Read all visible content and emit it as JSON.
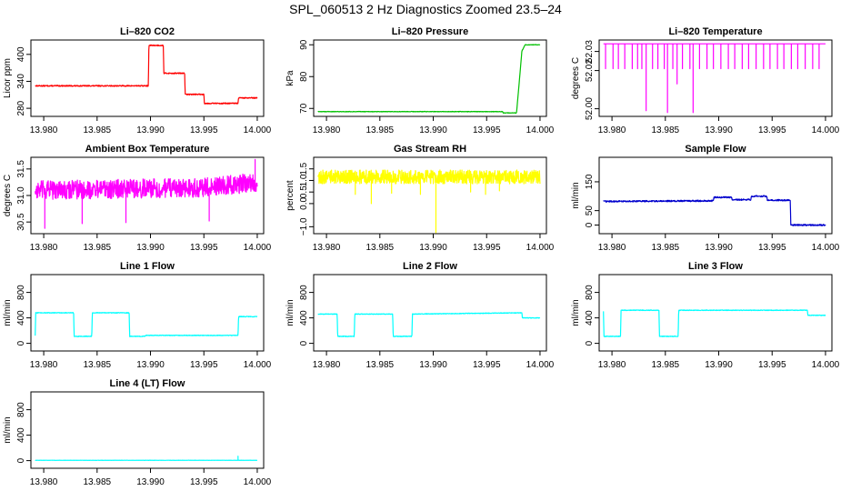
{
  "figure": {
    "title": "SPL_060513  2 Hz Diagnostics Zoomed 23.5–24"
  },
  "chart_data": [
    {
      "type": "line",
      "title": "Li–820 CO2",
      "xlabel": "",
      "ylabel": "Licor ppm",
      "color": "#ff0000",
      "xlim": [
        13.9788,
        14.0006
      ],
      "ylim": [
        262,
        432
      ],
      "xticks": [
        "13.980",
        "13.985",
        "13.990",
        "13.995",
        "14.000"
      ],
      "yticks": [
        {
          "v": 280,
          "label": "280"
        },
        {
          "v": 340,
          "label": "340"
        },
        {
          "v": 400,
          "label": "400"
        }
      ],
      "x": [
        13.9792,
        13.9898,
        13.98985,
        13.9912,
        13.99125,
        13.9932,
        13.99325,
        13.995,
        13.99505,
        13.9982,
        13.99825,
        14.0
      ],
      "values": [
        330,
        330,
        420,
        420,
        358,
        358,
        311,
        311,
        291,
        291,
        303,
        303
      ],
      "noise": 1.2,
      "spikes": []
    },
    {
      "type": "line",
      "title": "Li–820 Pressure",
      "xlabel": "",
      "ylabel": "kPa",
      "color": "#00c000",
      "xlim": [
        13.9788,
        14.0006
      ],
      "ylim": [
        67.5,
        91.5
      ],
      "xticks": [
        "13.980",
        "13.985",
        "13.990",
        "13.995",
        "14.000"
      ],
      "yticks": [
        {
          "v": 70,
          "label": "70"
        },
        {
          "v": 80,
          "label": "80"
        },
        {
          "v": 90,
          "label": "90"
        }
      ],
      "x": [
        13.9792,
        13.9965,
        13.99655,
        13.9978,
        13.9981,
        13.9983,
        13.9986,
        14.0
      ],
      "values": [
        69.0,
        69.0,
        68.6,
        68.6,
        80,
        88,
        90,
        90
      ],
      "noise": 0.08,
      "spikes": []
    },
    {
      "type": "line",
      "title": "Li–820 Temperature",
      "xlabel": "",
      "ylabel": "degrees C",
      "color": "#ff00ff",
      "xlim": [
        13.9788,
        14.0006
      ],
      "ylim": [
        51.996,
        52.036
      ],
      "xticks": [
        "13.980",
        "13.985",
        "13.990",
        "13.995",
        "14.000"
      ],
      "yticks": [
        {
          "v": 52.0,
          "label": "52.00"
        },
        {
          "v": 52.02,
          "label": "52.02"
        },
        {
          "v": 52.03,
          "label": "52.03"
        }
      ],
      "x": [
        13.9792,
        14.0
      ],
      "values": [
        52.034,
        52.034
      ],
      "noise": 0,
      "spikes": [
        {
          "x": 13.9794,
          "v": 52.021
        },
        {
          "x": 13.9801,
          "v": 52.021
        },
        {
          "x": 13.9806,
          "v": 52.021
        },
        {
          "x": 13.9812,
          "v": 52.021
        },
        {
          "x": 13.9819,
          "v": 52.021
        },
        {
          "x": 13.9824,
          "v": 52.021
        },
        {
          "x": 13.9828,
          "v": 52.021
        },
        {
          "x": 13.9832,
          "v": 51.999
        },
        {
          "x": 13.9838,
          "v": 52.021
        },
        {
          "x": 13.9843,
          "v": 52.021
        },
        {
          "x": 13.9849,
          "v": 52.021
        },
        {
          "x": 13.9852,
          "v": 51.998
        },
        {
          "x": 13.9857,
          "v": 52.021
        },
        {
          "x": 13.9861,
          "v": 52.013
        },
        {
          "x": 13.9866,
          "v": 52.021
        },
        {
          "x": 13.9873,
          "v": 52.021
        },
        {
          "x": 13.9876,
          "v": 51.998
        },
        {
          "x": 13.9882,
          "v": 52.021
        },
        {
          "x": 13.9889,
          "v": 52.021
        },
        {
          "x": 13.9895,
          "v": 52.021
        },
        {
          "x": 13.9902,
          "v": 52.021
        },
        {
          "x": 13.9909,
          "v": 52.021
        },
        {
          "x": 13.9915,
          "v": 52.021
        },
        {
          "x": 13.9922,
          "v": 52.021
        },
        {
          "x": 13.9928,
          "v": 52.021
        },
        {
          "x": 13.9935,
          "v": 52.021
        },
        {
          "x": 13.9942,
          "v": 52.021
        },
        {
          "x": 13.9948,
          "v": 52.021
        },
        {
          "x": 13.9955,
          "v": 52.021
        },
        {
          "x": 13.9961,
          "v": 52.021
        },
        {
          "x": 13.9968,
          "v": 52.021
        },
        {
          "x": 13.9974,
          "v": 52.021
        },
        {
          "x": 13.9981,
          "v": 52.021
        },
        {
          "x": 13.9988,
          "v": 52.021
        },
        {
          "x": 13.9994,
          "v": 52.021
        }
      ]
    },
    {
      "type": "line",
      "title": "Ambient Box Temperature",
      "xlabel": "",
      "ylabel": "degrees C",
      "color": "#ff00ff",
      "xlim": [
        13.9788,
        14.0006
      ],
      "ylim": [
        30.28,
        31.72
      ],
      "xticks": [
        "13.980",
        "13.985",
        "13.990",
        "13.995",
        "14.000"
      ],
      "yticks": [
        {
          "v": 30.5,
          "label": "30.5"
        },
        {
          "v": 31.0,
          "label": "31.0"
        },
        {
          "v": 31.5,
          "label": "31.5"
        }
      ],
      "x": [
        13.9792,
        13.995,
        14.0
      ],
      "values": [
        31.1,
        31.15,
        31.25
      ],
      "noise": 0.18,
      "spikes": [
        {
          "x": 13.9801,
          "v": 30.38
        },
        {
          "x": 13.9836,
          "v": 30.47
        },
        {
          "x": 13.9877,
          "v": 30.49
        },
        {
          "x": 13.9955,
          "v": 30.52
        },
        {
          "x": 13.9998,
          "v": 31.68
        }
      ]
    },
    {
      "type": "line",
      "title": "Gas Stream RH",
      "xlabel": "",
      "ylabel": "percent",
      "color": "#ffff00",
      "xlim": [
        13.9788,
        14.0006
      ],
      "ylim": [
        -1.3,
        2.0
      ],
      "xticks": [
        "13.980",
        "13.985",
        "13.990",
        "13.995",
        "14.000"
      ],
      "yticks": [
        {
          "v": -1.0,
          "label": "−1.0"
        },
        {
          "v": 0.0,
          "label": "0.0"
        },
        {
          "v": 0.5,
          "label": "0.5"
        },
        {
          "v": 1.0,
          "label": "1.0"
        },
        {
          "v": 1.5,
          "label": "1.5"
        }
      ],
      "x": [
        13.9792,
        14.0
      ],
      "values": [
        1.15,
        1.15
      ],
      "noise": 0.3,
      "spikes": [
        {
          "x": 13.9827,
          "v": 0.4
        },
        {
          "x": 13.9842,
          "v": 0.0
        },
        {
          "x": 13.9861,
          "v": 0.45
        },
        {
          "x": 13.9888,
          "v": 0.4
        },
        {
          "x": 13.99025,
          "v": -1.25
        },
        {
          "x": 13.9935,
          "v": 0.5
        },
        {
          "x": 13.9949,
          "v": 0.4
        },
        {
          "x": 13.9962,
          "v": 0.55
        }
      ]
    },
    {
      "type": "line",
      "title": "Sample Flow",
      "xlabel": "",
      "ylabel": "ml/min",
      "color": "#0000cd",
      "xlim": [
        13.9788,
        14.0006
      ],
      "ylim": [
        -30,
        235
      ],
      "xticks": [
        "13.980",
        "13.985",
        "13.990",
        "13.995",
        "14.000"
      ],
      "yticks": [
        {
          "v": 0,
          "label": "0"
        },
        {
          "v": 50,
          "label": "50"
        },
        {
          "v": 150,
          "label": "150"
        }
      ],
      "x": [
        13.9792,
        13.9895,
        13.98955,
        13.9912,
        13.99125,
        13.993,
        13.99305,
        13.9945,
        13.99455,
        13.9967,
        13.99675,
        14.0
      ],
      "values": [
        82,
        84,
        96,
        96,
        88,
        88,
        100,
        100,
        86,
        86,
        0,
        0
      ],
      "noise": 2.5,
      "spikes": []
    },
    {
      "type": "line",
      "title": "Line 1 Flow",
      "xlabel": "",
      "ylabel": "ml/min",
      "color": "#00ffff",
      "xlim": [
        13.9788,
        14.0006
      ],
      "ylim": [
        -120,
        1080
      ],
      "xticks": [
        "13.980",
        "13.985",
        "13.990",
        "13.995",
        "14.000"
      ],
      "yticks": [
        {
          "v": 0,
          "label": "0"
        },
        {
          "v": 400,
          "label": "400"
        },
        {
          "v": 800,
          "label": "800"
        }
      ],
      "x": [
        13.9792,
        13.97925,
        13.9828,
        13.98285,
        13.9845,
        13.98455,
        13.988,
        13.98805,
        13.9895,
        13.98955,
        13.9982,
        13.99825,
        14.0
      ],
      "values": [
        120,
        480,
        480,
        110,
        110,
        480,
        480,
        110,
        110,
        125,
        125,
        420,
        420
      ],
      "noise": 5,
      "spikes": []
    },
    {
      "type": "line",
      "title": "Line 2 Flow",
      "xlabel": "",
      "ylabel": "ml/min",
      "color": "#00ffff",
      "xlim": [
        13.9788,
        14.0006
      ],
      "ylim": [
        -120,
        1080
      ],
      "xticks": [
        "13.980",
        "13.985",
        "13.990",
        "13.995",
        "14.000"
      ],
      "yticks": [
        {
          "v": 0,
          "label": "0"
        },
        {
          "v": 400,
          "label": "400"
        },
        {
          "v": 800,
          "label": "800"
        }
      ],
      "x": [
        13.9792,
        13.981,
        13.98105,
        13.9826,
        13.98265,
        13.9862,
        13.98625,
        13.988,
        13.98805,
        13.9983,
        13.99835,
        14.0
      ],
      "values": [
        460,
        460,
        110,
        110,
        460,
        460,
        110,
        110,
        460,
        480,
        400,
        400
      ],
      "noise": 5,
      "spikes": []
    },
    {
      "type": "line",
      "title": "Line 3 Flow",
      "xlabel": "",
      "ylabel": "ml/min",
      "color": "#00ffff",
      "xlim": [
        13.9788,
        14.0006
      ],
      "ylim": [
        -120,
        1080
      ],
      "xticks": [
        "13.980",
        "13.985",
        "13.990",
        "13.995",
        "14.000"
      ],
      "yticks": [
        {
          "v": 0,
          "label": "0"
        },
        {
          "v": 400,
          "label": "400"
        },
        {
          "v": 800,
          "label": "800"
        }
      ],
      "x": [
        13.9792,
        13.97925,
        13.9808,
        13.98085,
        13.9844,
        13.98445,
        13.9862,
        13.98625,
        13.9983,
        13.99835,
        14.0
      ],
      "values": [
        500,
        110,
        110,
        520,
        520,
        110,
        110,
        520,
        520,
        440,
        440
      ],
      "noise": 5,
      "spikes": []
    },
    {
      "type": "line",
      "title": "Line 4 (LT) Flow",
      "xlabel": "",
      "ylabel": "ml/min",
      "color": "#00ffff",
      "xlim": [
        13.9788,
        14.0006
      ],
      "ylim": [
        -120,
        1080
      ],
      "xticks": [
        "13.980",
        "13.985",
        "13.990",
        "13.995",
        "14.000"
      ],
      "yticks": [
        {
          "v": 0,
          "label": "0"
        },
        {
          "v": 400,
          "label": "400"
        },
        {
          "v": 800,
          "label": "800"
        }
      ],
      "x": [
        13.9792,
        14.0
      ],
      "values": [
        5,
        5
      ],
      "noise": 1.5,
      "spikes": [
        {
          "x": 13.9982,
          "v": 70
        }
      ]
    }
  ]
}
